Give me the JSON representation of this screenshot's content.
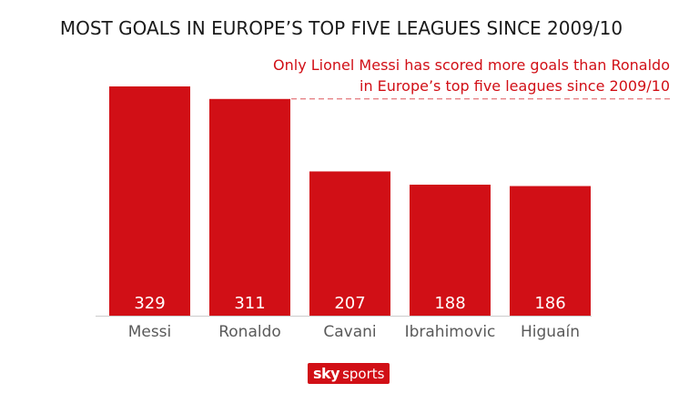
{
  "chart_data": {
    "type": "bar",
    "title": "MOST GOALS IN EUROPE’S TOP FIVE LEAGUES SINCE 2009/10",
    "annotation": [
      "Only Lionel Messi has scored more goals than Ronaldo",
      "in Europe’s top five leagues since 2009/10"
    ],
    "categories": [
      "Messi",
      "Ronaldo",
      "Cavani",
      "Ibrahimovic",
      "Higuaín"
    ],
    "values": [
      329,
      311,
      207,
      188,
      186
    ],
    "value_labels": [
      "329",
      "311",
      "207",
      "188",
      "186"
    ],
    "xlabel": "",
    "ylabel": "",
    "ylim": [
      0,
      329
    ],
    "reference_line_value": 311,
    "bar_color": "#d10f16",
    "grid": false
  },
  "branding": {
    "logo_sky": "sky",
    "logo_sports": "sports"
  }
}
